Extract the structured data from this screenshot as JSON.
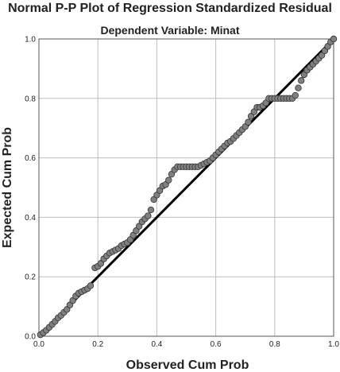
{
  "chart_data": {
    "type": "scatter",
    "title": "Normal P-P Plot of Regression Standardized Residual",
    "subtitle": "Dependent Variable: Minat",
    "xlabel": "Observed Cum Prob",
    "ylabel": "Expected Cum Prob",
    "xlim": [
      0,
      1
    ],
    "ylim": [
      0,
      1
    ],
    "xticks": [
      "0.0",
      "0.2",
      "0.4",
      "0.6",
      "0.8",
      "1.0"
    ],
    "yticks": [
      "0.0",
      "0.2",
      "0.4",
      "0.6",
      "0.8",
      "1.0"
    ],
    "grid": true,
    "legend": "none",
    "reference_line": {
      "from": [
        0,
        0
      ],
      "to": [
        1,
        1
      ],
      "color": "#000000"
    },
    "marker_color": "#808080",
    "marker_edge": "#333333",
    "points": [
      [
        0.005,
        0.005
      ],
      [
        0.015,
        0.012
      ],
      [
        0.025,
        0.02
      ],
      [
        0.035,
        0.03
      ],
      [
        0.045,
        0.04
      ],
      [
        0.055,
        0.05
      ],
      [
        0.065,
        0.062
      ],
      [
        0.075,
        0.07
      ],
      [
        0.085,
        0.08
      ],
      [
        0.095,
        0.09
      ],
      [
        0.105,
        0.105
      ],
      [
        0.115,
        0.12
      ],
      [
        0.125,
        0.135
      ],
      [
        0.135,
        0.145
      ],
      [
        0.145,
        0.15
      ],
      [
        0.155,
        0.155
      ],
      [
        0.165,
        0.16
      ],
      [
        0.175,
        0.17
      ],
      [
        0.19,
        0.23
      ],
      [
        0.2,
        0.235
      ],
      [
        0.21,
        0.245
      ],
      [
        0.22,
        0.26
      ],
      [
        0.23,
        0.27
      ],
      [
        0.24,
        0.28
      ],
      [
        0.25,
        0.285
      ],
      [
        0.26,
        0.29
      ],
      [
        0.27,
        0.295
      ],
      [
        0.28,
        0.305
      ],
      [
        0.29,
        0.31
      ],
      [
        0.3,
        0.315
      ],
      [
        0.31,
        0.325
      ],
      [
        0.32,
        0.34
      ],
      [
        0.33,
        0.355
      ],
      [
        0.34,
        0.37
      ],
      [
        0.35,
        0.385
      ],
      [
        0.36,
        0.395
      ],
      [
        0.37,
        0.405
      ],
      [
        0.38,
        0.425
      ],
      [
        0.39,
        0.46
      ],
      [
        0.4,
        0.475
      ],
      [
        0.41,
        0.49
      ],
      [
        0.42,
        0.505
      ],
      [
        0.43,
        0.51
      ],
      [
        0.44,
        0.525
      ],
      [
        0.45,
        0.545
      ],
      [
        0.46,
        0.56
      ],
      [
        0.47,
        0.57
      ],
      [
        0.48,
        0.57
      ],
      [
        0.49,
        0.57
      ],
      [
        0.5,
        0.57
      ],
      [
        0.51,
        0.57
      ],
      [
        0.52,
        0.57
      ],
      [
        0.53,
        0.57
      ],
      [
        0.54,
        0.57
      ],
      [
        0.55,
        0.575
      ],
      [
        0.56,
        0.58
      ],
      [
        0.57,
        0.585
      ],
      [
        0.58,
        0.59
      ],
      [
        0.59,
        0.6
      ],
      [
        0.6,
        0.61
      ],
      [
        0.61,
        0.62
      ],
      [
        0.62,
        0.63
      ],
      [
        0.63,
        0.64
      ],
      [
        0.64,
        0.65
      ],
      [
        0.65,
        0.655
      ],
      [
        0.66,
        0.665
      ],
      [
        0.67,
        0.675
      ],
      [
        0.68,
        0.685
      ],
      [
        0.69,
        0.695
      ],
      [
        0.7,
        0.705
      ],
      [
        0.71,
        0.72
      ],
      [
        0.72,
        0.74
      ],
      [
        0.73,
        0.755
      ],
      [
        0.74,
        0.77
      ],
      [
        0.75,
        0.77
      ],
      [
        0.76,
        0.775
      ],
      [
        0.77,
        0.785
      ],
      [
        0.78,
        0.8
      ],
      [
        0.79,
        0.8
      ],
      [
        0.8,
        0.8
      ],
      [
        0.81,
        0.8
      ],
      [
        0.82,
        0.8
      ],
      [
        0.83,
        0.8
      ],
      [
        0.84,
        0.8
      ],
      [
        0.85,
        0.8
      ],
      [
        0.86,
        0.8
      ],
      [
        0.87,
        0.81
      ],
      [
        0.88,
        0.835
      ],
      [
        0.89,
        0.86
      ],
      [
        0.9,
        0.88
      ],
      [
        0.91,
        0.895
      ],
      [
        0.92,
        0.905
      ],
      [
        0.93,
        0.915
      ],
      [
        0.94,
        0.925
      ],
      [
        0.95,
        0.935
      ],
      [
        0.96,
        0.945
      ],
      [
        0.97,
        0.96
      ],
      [
        0.98,
        0.975
      ],
      [
        0.99,
        0.99
      ],
      [
        1.0,
        1.0
      ]
    ]
  }
}
